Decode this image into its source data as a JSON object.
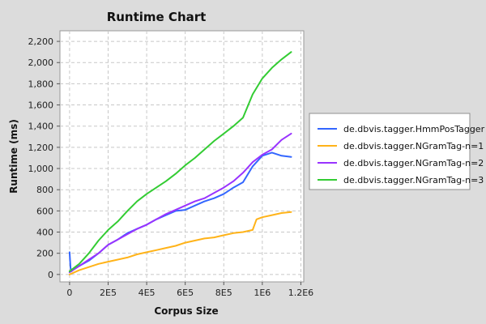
{
  "chart_data": {
    "type": "line",
    "title": "Runtime Chart",
    "xlabel": "Corpus Size",
    "ylabel": "Runtime (ms)",
    "xlim": [
      -50000,
      1215000
    ],
    "ylim": [
      -70,
      2300
    ],
    "x_ticks": [
      0,
      200000,
      400000,
      600000,
      800000,
      1000000,
      1200000
    ],
    "x_tick_labels": [
      "0",
      "2E5",
      "4E5",
      "6E5",
      "8E5",
      "1E6",
      "1.2E6"
    ],
    "y_ticks": [
      0,
      200,
      400,
      600,
      800,
      1000,
      1200,
      1400,
      1600,
      1800,
      2000,
      2200
    ],
    "y_tick_labels": [
      "0",
      "200",
      "400",
      "600",
      "800",
      "1,000",
      "1,200",
      "1,400",
      "1,600",
      "1,800",
      "2,000",
      "2,200"
    ],
    "grid": true,
    "legend_position": "right",
    "series": [
      {
        "name": "de.dbvis.tagger.HmmPosTagger",
        "color": "#3366ff",
        "x": [
          0,
          5000,
          10000,
          20000,
          50000,
          100000,
          150000,
          200000,
          250000,
          300000,
          350000,
          400000,
          450000,
          500000,
          550000,
          600000,
          650000,
          700000,
          750000,
          800000,
          850000,
          900000,
          950000,
          1000000,
          1050000,
          1100000,
          1150000
        ],
        "y": [
          210,
          60,
          30,
          50,
          80,
          130,
          200,
          280,
          330,
          390,
          430,
          470,
          520,
          560,
          600,
          610,
          650,
          690,
          720,
          760,
          820,
          870,
          1020,
          1120,
          1150,
          1120,
          1110
        ]
      },
      {
        "name": "de.dbvis.tagger.NGramTag-n=1",
        "color": "#ffb319",
        "x": [
          0,
          50000,
          100000,
          150000,
          200000,
          250000,
          300000,
          350000,
          400000,
          450000,
          500000,
          550000,
          600000,
          650000,
          700000,
          750000,
          800000,
          850000,
          900000,
          950000,
          970000,
          1000000,
          1050000,
          1100000,
          1150000
        ],
        "y": [
          0,
          40,
          70,
          100,
          120,
          140,
          160,
          190,
          210,
          230,
          250,
          270,
          300,
          320,
          340,
          350,
          370,
          390,
          400,
          420,
          520,
          540,
          560,
          580,
          590
        ]
      },
      {
        "name": "de.dbvis.tagger.NGramTag-n=2",
        "color": "#9933ff",
        "x": [
          0,
          50000,
          100000,
          150000,
          200000,
          250000,
          300000,
          350000,
          400000,
          450000,
          500000,
          550000,
          600000,
          650000,
          700000,
          750000,
          800000,
          850000,
          900000,
          950000,
          1000000,
          1050000,
          1100000,
          1150000
        ],
        "y": [
          20,
          80,
          140,
          200,
          280,
          330,
          380,
          430,
          470,
          520,
          570,
          610,
          650,
          690,
          720,
          770,
          820,
          880,
          960,
          1060,
          1130,
          1180,
          1270,
          1330
        ]
      },
      {
        "name": "de.dbvis.tagger.NGramTag-n=3",
        "color": "#33cc33",
        "x": [
          0,
          50000,
          100000,
          150000,
          200000,
          250000,
          300000,
          350000,
          400000,
          450000,
          500000,
          550000,
          600000,
          650000,
          700000,
          750000,
          800000,
          850000,
          900000,
          950000,
          1000000,
          1050000,
          1100000,
          1150000
        ],
        "y": [
          30,
          100,
          200,
          320,
          420,
          500,
          600,
          690,
          760,
          820,
          880,
          950,
          1030,
          1100,
          1180,
          1260,
          1330,
          1400,
          1480,
          1700,
          1850,
          1950,
          2030,
          2100
        ]
      }
    ]
  }
}
